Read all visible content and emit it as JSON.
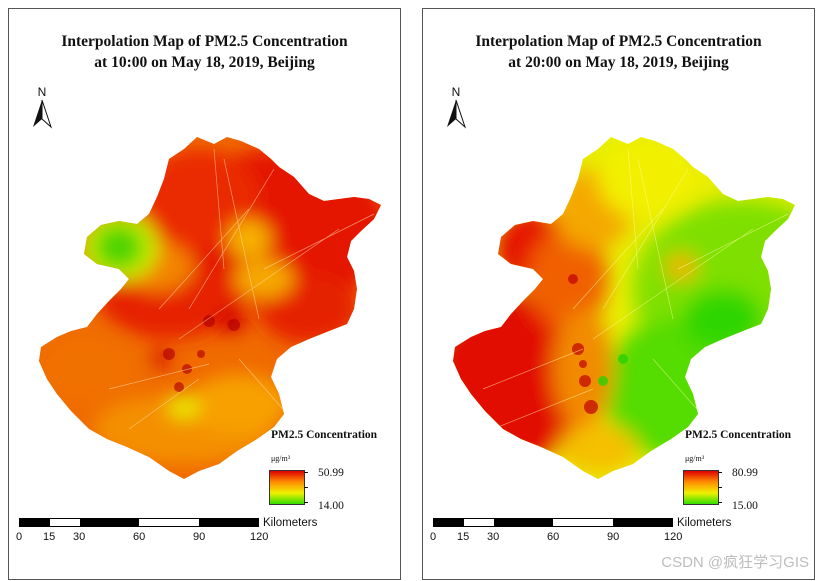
{
  "maps": [
    {
      "title_line1": "Interpolation Map of PM2.5 Concentration",
      "title_line2": "at 10:00 on May 18, 2019, Beijing",
      "north_label": "N",
      "legend": {
        "title": "PM2.5 Concentration",
        "unit": "μg/m³",
        "max": "50.99",
        "min": "14.00",
        "colors": [
          "#e00000",
          "#ff8c00",
          "#f0f000",
          "#33dd00"
        ]
      },
      "scale": {
        "labels": [
          "0",
          "15",
          "30",
          "60",
          "90",
          "120"
        ],
        "units": "Kilometers"
      }
    },
    {
      "title_line1": "Interpolation Map of PM2.5 Concentration",
      "title_line2": "at 20:00 on May 18, 2019, Beijing",
      "north_label": "N",
      "legend": {
        "title": "PM2.5 Concentration",
        "unit": "μg/m³",
        "max": "80.99",
        "min": "15.00",
        "colors": [
          "#e00000",
          "#ff8c00",
          "#f0f000",
          "#33dd00"
        ]
      },
      "scale": {
        "labels": [
          "0",
          "15",
          "30",
          "60",
          "90",
          "120"
        ],
        "units": "Kilometers"
      }
    }
  ],
  "watermark": "CSDN @疯狂学习GIS"
}
